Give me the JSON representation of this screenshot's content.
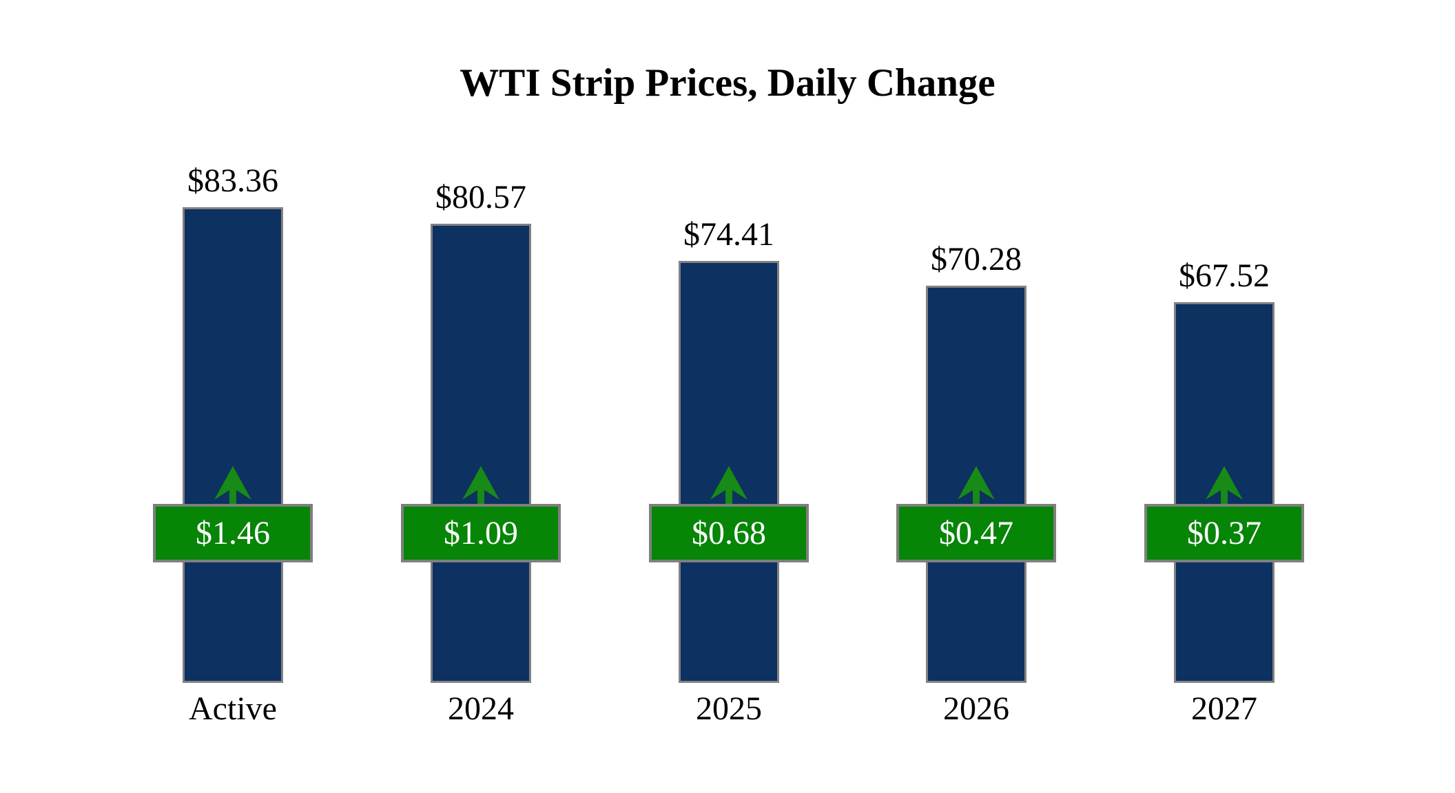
{
  "chart_data": {
    "type": "bar",
    "title": "WTI Strip Prices, Daily Change",
    "categories": [
      "Active",
      "2024",
      "2025",
      "2026",
      "2027"
    ],
    "series": [
      {
        "name": "WTI strip price (USD per barrel)",
        "values": [
          83.36,
          80.57,
          74.41,
          70.28,
          67.52
        ],
        "labels": [
          "$83.36",
          "$80.57",
          "$74.41",
          "$70.28",
          "$67.52"
        ]
      },
      {
        "name": "Daily change (USD)",
        "values": [
          1.46,
          1.09,
          0.68,
          0.47,
          0.37
        ],
        "labels": [
          "$1.46",
          "$1.09",
          "$0.68",
          "$0.47",
          "$0.37"
        ],
        "direction": "up"
      }
    ],
    "xlabel": "",
    "ylabel": "",
    "y_axis_visible": false,
    "grid": false,
    "legend_position": "none"
  },
  "colors": {
    "bar_fill": "#0d3160",
    "bar_border": "#828282",
    "badge_fill": "#078507",
    "badge_border": "#7f7f7f",
    "badge_text": "#ffffff",
    "arrow_green": "#178a17",
    "label_text": "#000000",
    "background": "#ffffff"
  },
  "icons": {
    "up_arrow": "up-arrow-icon"
  }
}
